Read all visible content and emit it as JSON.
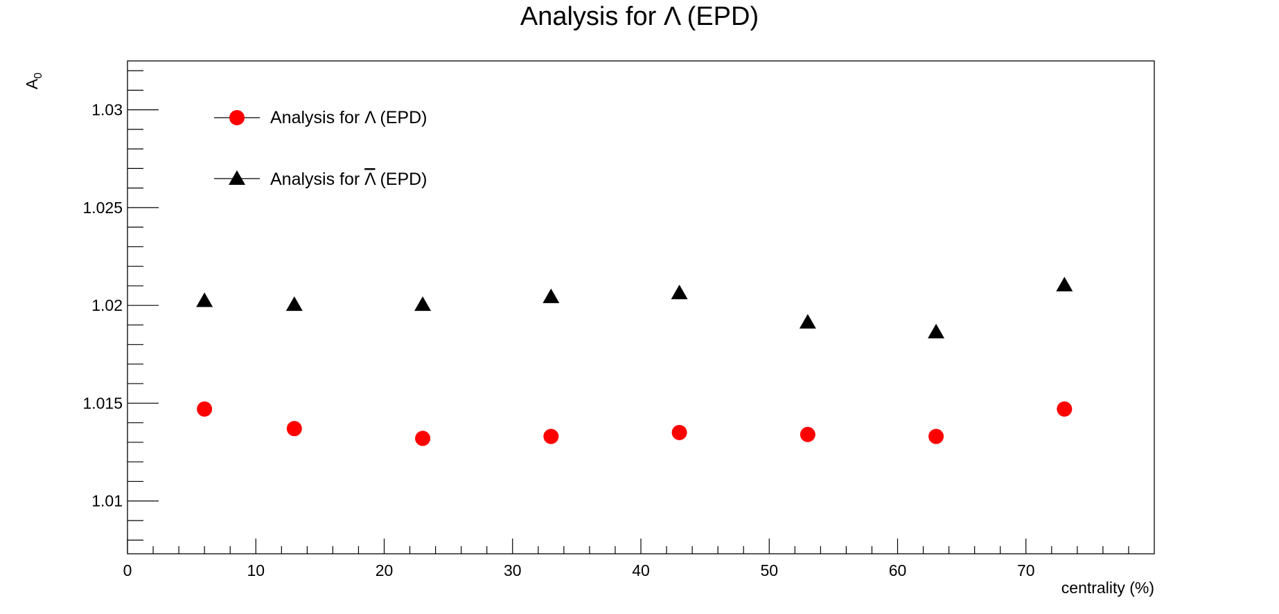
{
  "chart_data": {
    "type": "scatter",
    "title": "Analysis for Λ (EPD)",
    "xlabel": "centrality (%)",
    "ylabel": "A",
    "ylabel_subscript": "0",
    "xlim": [
      0,
      80
    ],
    "ylim": [
      1.0073,
      1.0325
    ],
    "x_ticks": [
      0,
      10,
      20,
      30,
      40,
      50,
      60,
      70
    ],
    "x_tick_labels": [
      "0",
      "10",
      "20",
      "30",
      "40",
      "50",
      "60",
      "70"
    ],
    "y_ticks": [
      1.01,
      1.015,
      1.02,
      1.025,
      1.03
    ],
    "y_tick_labels": [
      "1.01",
      "1.015",
      "1.02",
      "1.025",
      "1.03"
    ],
    "grid": false,
    "legend_position": "top-left",
    "x": [
      6,
      13,
      23,
      33,
      43,
      53,
      63,
      73
    ],
    "series": [
      {
        "name": "Analysis for Λ (EPD)",
        "marker": "circle",
        "color": "#ff0000",
        "values": [
          1.0147,
          1.0137,
          1.0132,
          1.0133,
          1.0135,
          1.0134,
          1.0133,
          1.0147
        ]
      },
      {
        "name_prefix": "Analysis for ",
        "name_symbol": "Λ",
        "name_suffix": " (EPD)",
        "symbol_overline": true,
        "marker": "triangle",
        "color": "#000000",
        "values": [
          1.0202,
          1.02,
          1.02,
          1.0204,
          1.0206,
          1.0191,
          1.0186,
          1.021
        ]
      }
    ]
  }
}
